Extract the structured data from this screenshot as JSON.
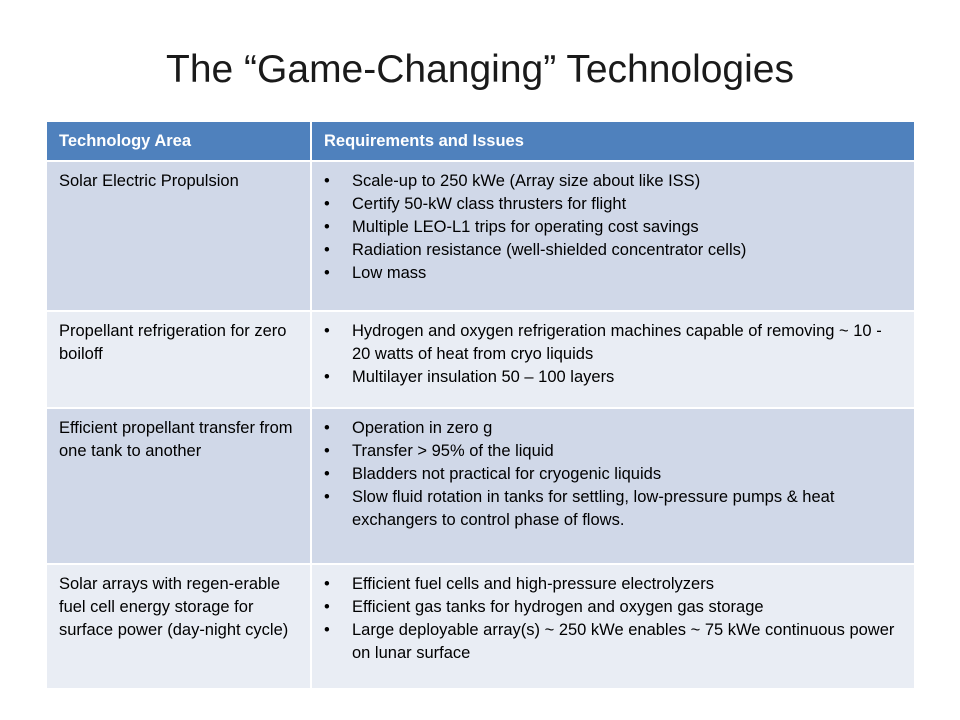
{
  "slide": {
    "title": "The “Game-Changing” Technologies"
  },
  "table": {
    "headers": [
      "Technology Area",
      "Requirements and Issues"
    ],
    "rows": [
      {
        "area": "Solar Electric Propulsion",
        "items": [
          "Scale-up to 250 kWe (Array size about like ISS)",
          "Certify 50-kW class thrusters for flight",
          "Multiple LEO-L1 trips for operating cost savings",
          "Radiation resistance (well-shielded concentrator cells)",
          "Low mass"
        ]
      },
      {
        "area": "Propellant refrigeration for zero boiloff",
        "items": [
          "Hydrogen and oxygen refrigeration machines capable of removing ~ 10 - 20 watts of heat from cryo liquids",
          "Multilayer insulation 50 – 100 layers"
        ]
      },
      {
        "area": "Efficient propellant transfer from one tank to another",
        "items": [
          "Operation in zero g",
          "Transfer > 95% of the liquid",
          "Bladders not practical for cryogenic liquids",
          "Slow fluid rotation in tanks for settling, low-pressure pumps & heat exchangers to control phase of flows."
        ]
      },
      {
        "area": "Solar arrays with regen-erable fuel cell energy storage for surface power (day-night cycle)",
        "items": [
          "Efficient fuel cells and high-pressure electrolyzers",
          "Efficient gas tanks for hydrogen and oxygen gas storage",
          "Large deployable array(s) ~ 250 kWe enables ~ 75 kWe continuous power on lunar surface"
        ]
      }
    ]
  },
  "colors": {
    "header_bg": "#4f81bd",
    "row_dark": "#d0d8e8",
    "row_light": "#e9edf4"
  }
}
